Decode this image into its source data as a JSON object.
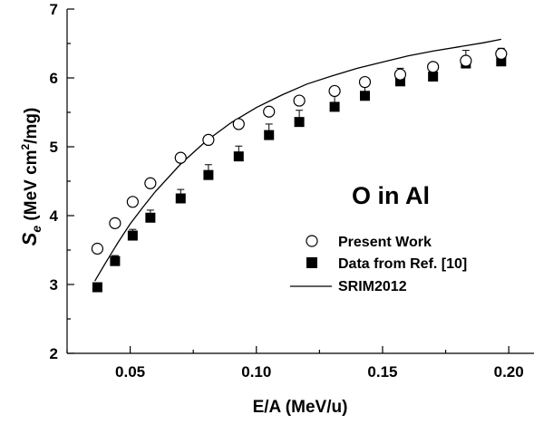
{
  "chart_data": {
    "type": "scatter",
    "title": "",
    "xlabel": "E/A (MeV/u)",
    "ylabel_main": "S",
    "ylabel_sub": "e",
    "ylabel_unit_prefix": " (MeV cm",
    "ylabel_unit_sup": "2",
    "ylabel_unit_suffix": "/mg)",
    "xlim": [
      0.025,
      0.21
    ],
    "ylim": [
      2,
      7
    ],
    "x_ticks": [
      0.05,
      0.1,
      0.15,
      0.2
    ],
    "x_tick_labels": [
      "0.05",
      "0.10",
      "0.15",
      "0.20"
    ],
    "x_minor_ticks": [
      0.025,
      0.075,
      0.125,
      0.175
    ],
    "y_ticks": [
      2,
      3,
      4,
      5,
      6,
      7
    ],
    "y_tick_labels": [
      "2",
      "3",
      "4",
      "5",
      "6",
      "7"
    ],
    "y_minor_ticks": [
      2.5,
      3.5,
      4.5,
      5.5,
      6.5
    ],
    "grid": false,
    "legend_position": "right",
    "annotation": "O in Al",
    "series": [
      {
        "name": "Present Work",
        "marker": "open-circle",
        "points": [
          {
            "x": 0.037,
            "y": 3.52
          },
          {
            "x": 0.044,
            "y": 3.89
          },
          {
            "x": 0.051,
            "y": 4.2
          },
          {
            "x": 0.058,
            "y": 4.47
          },
          {
            "x": 0.07,
            "y": 4.84
          },
          {
            "x": 0.081,
            "y": 5.1
          },
          {
            "x": 0.093,
            "y": 5.33
          },
          {
            "x": 0.105,
            "y": 5.51
          },
          {
            "x": 0.117,
            "y": 5.67
          },
          {
            "x": 0.131,
            "y": 5.81
          },
          {
            "x": 0.143,
            "y": 5.94
          },
          {
            "x": 0.157,
            "y": 6.05
          },
          {
            "x": 0.17,
            "y": 6.16
          },
          {
            "x": 0.183,
            "y": 6.25
          },
          {
            "x": 0.197,
            "y": 6.35
          }
        ]
      },
      {
        "name": "Data from Ref. [10]",
        "marker": "filled-square",
        "points": [
          {
            "x": 0.037,
            "y": 2.96,
            "err": 0.06
          },
          {
            "x": 0.044,
            "y": 3.34,
            "err": 0.08
          },
          {
            "x": 0.051,
            "y": 3.71,
            "err": 0.09
          },
          {
            "x": 0.058,
            "y": 3.97,
            "err": 0.11
          },
          {
            "x": 0.07,
            "y": 4.25,
            "err": 0.13
          },
          {
            "x": 0.081,
            "y": 4.59,
            "err": 0.15
          },
          {
            "x": 0.093,
            "y": 4.86,
            "err": 0.15
          },
          {
            "x": 0.105,
            "y": 5.17,
            "err": 0.16
          },
          {
            "x": 0.117,
            "y": 5.36,
            "err": 0.17
          },
          {
            "x": 0.131,
            "y": 5.58,
            "err": 0.17
          },
          {
            "x": 0.143,
            "y": 5.74,
            "err": 0.18
          },
          {
            "x": 0.157,
            "y": 5.95,
            "err": 0.19
          },
          {
            "x": 0.17,
            "y": 6.02,
            "err": 0.19
          },
          {
            "x": 0.183,
            "y": 6.21,
            "err": 0.19
          },
          {
            "x": 0.197,
            "y": 6.24,
            "err": 0.19
          }
        ]
      },
      {
        "name": "SRIM2012",
        "marker": "line",
        "points": [
          {
            "x": 0.036,
            "y": 3.05
          },
          {
            "x": 0.04,
            "y": 3.3
          },
          {
            "x": 0.045,
            "y": 3.6
          },
          {
            "x": 0.05,
            "y": 3.88
          },
          {
            "x": 0.055,
            "y": 4.12
          },
          {
            "x": 0.06,
            "y": 4.35
          },
          {
            "x": 0.07,
            "y": 4.75
          },
          {
            "x": 0.08,
            "y": 5.08
          },
          {
            "x": 0.09,
            "y": 5.35
          },
          {
            "x": 0.1,
            "y": 5.57
          },
          {
            "x": 0.11,
            "y": 5.75
          },
          {
            "x": 0.12,
            "y": 5.91
          },
          {
            "x": 0.13,
            "y": 6.03
          },
          {
            "x": 0.14,
            "y": 6.14
          },
          {
            "x": 0.15,
            "y": 6.23
          },
          {
            "x": 0.16,
            "y": 6.32
          },
          {
            "x": 0.17,
            "y": 6.39
          },
          {
            "x": 0.18,
            "y": 6.45
          },
          {
            "x": 0.19,
            "y": 6.51
          },
          {
            "x": 0.197,
            "y": 6.56
          }
        ]
      }
    ]
  }
}
